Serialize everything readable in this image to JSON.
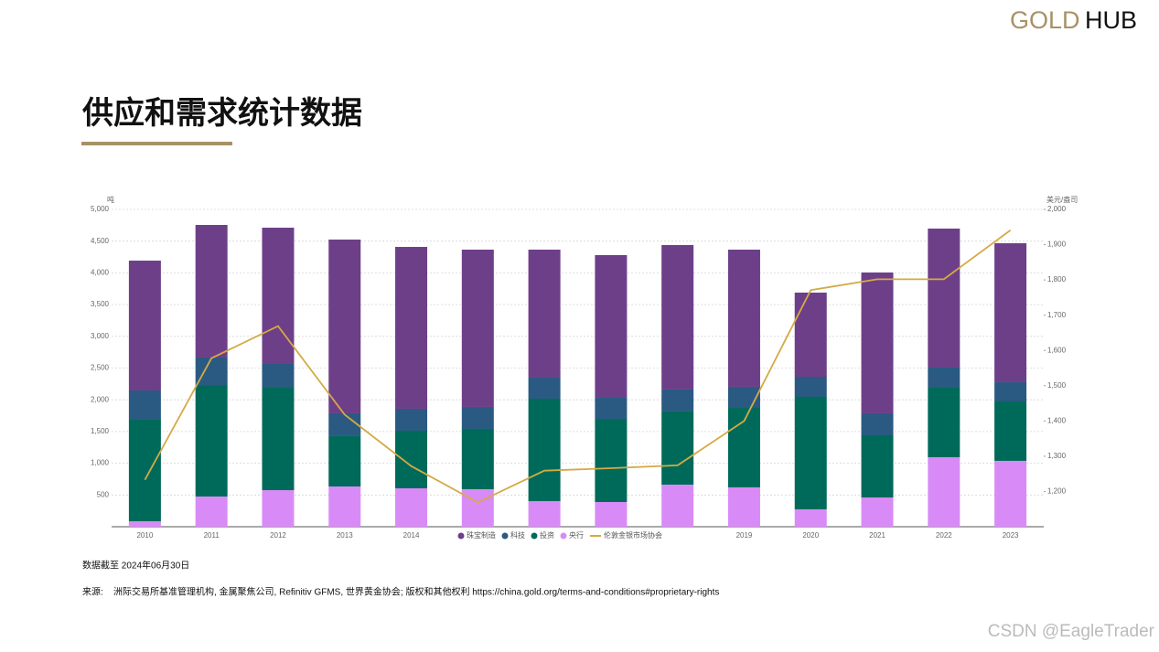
{
  "logo": {
    "part1": "GOLD",
    "part2": "HUB"
  },
  "title": "供应和需求统计数据",
  "footnote": "数据截至 2024年06月30日",
  "source_label": "来源:",
  "source": "洲际交易所基准管理机构, 金属聚焦公司, Refinitiv GFMS, 世界黄金协会; 版权和其他权利 https://china.gold.org/terms-and-conditions#proprietary-rights",
  "watermark": "CSDN @EagleTrader",
  "chart_data": {
    "type": "bar",
    "stacked": true,
    "y_label": "吨",
    "y2_label": "美元/盎司",
    "categories": [
      "2010",
      "2011",
      "2012",
      "2013",
      "2014",
      null,
      null,
      null,
      null,
      "2019",
      "2020",
      "2021",
      "2022",
      "2023"
    ],
    "series": [
      {
        "name": "珠宝制造",
        "color": "#6e3f89",
        "values": [
          2046,
          2089,
          2147,
          2738,
          2550,
          2478,
          2017,
          2248,
          2276,
          2161,
          1326,
          2219,
          2191,
          2190
        ]
      },
      {
        "name": "科技",
        "color": "#2a5a82",
        "values": [
          461,
          433,
          375,
          360,
          346,
          346,
          332,
          332,
          346,
          332,
          317,
          346,
          317,
          303
        ]
      },
      {
        "name": "投资",
        "color": "#006a5a",
        "values": [
          1600,
          1757,
          1614,
          793,
          908,
          951,
          1614,
          1311,
          1153,
          1253,
          1772,
          980,
          1095,
          936
        ]
      },
      {
        "name": "央行",
        "color": "#d88bf6",
        "values": [
          86,
          476,
          576,
          634,
          605,
          591,
          403,
          389,
          663,
          620,
          274,
          461,
          1095,
          1038
        ]
      },
      {
        "name": "伦敦金银市场协会",
        "color": "#d4aa45",
        "type": "line",
        "axis": "y2",
        "values": [
          1233,
          1578,
          1669,
          1418,
          1272,
          1169,
          1259,
          1266,
          1274,
          1400,
          1771,
          1802,
          1802,
          1941
        ]
      }
    ],
    "ylim": [
      0,
      5000
    ],
    "yticks": [
      500,
      {
        "value": 1000,
        "label": "1,000"
      },
      {
        "value": 1500,
        "label": "1,500"
      },
      {
        "value": 2000,
        "label": "2,000"
      },
      {
        "value": 2500,
        "label": "2,500"
      },
      {
        "value": 3000,
        "label": "3,000"
      },
      {
        "value": 3500,
        "label": "3,500"
      },
      {
        "value": 4000,
        "label": "4,000"
      },
      {
        "value": 4500,
        "label": "4,500"
      },
      {
        "value": 5000,
        "label": "5,000"
      }
    ],
    "y2lim": [
      1100,
      2000
    ],
    "y2ticks": [
      {
        "value": 1200,
        "label": "1,200"
      },
      {
        "value": 1300,
        "label": "1,300"
      },
      {
        "value": 1400,
        "label": "1,400"
      },
      {
        "value": 1500,
        "label": "1,500"
      },
      {
        "value": 1600,
        "label": "1,600"
      },
      {
        "value": 1700,
        "label": "1,700"
      },
      {
        "value": 1800,
        "label": "1,800"
      },
      {
        "value": 1900,
        "label": "1,900"
      },
      {
        "value": 2000,
        "label": "2,000"
      }
    ],
    "grid": true,
    "legend": "bottom"
  }
}
